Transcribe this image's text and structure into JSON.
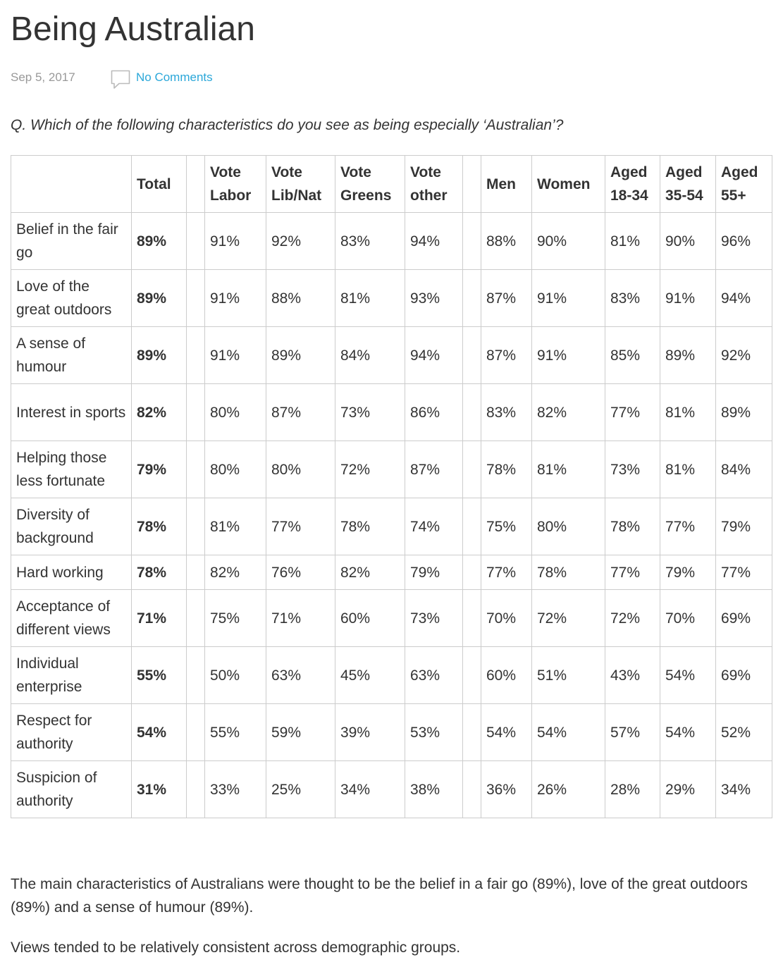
{
  "article": {
    "title": "Being Australian",
    "date": "Sep 5, 2017",
    "comments_label": "No Comments",
    "question": "Q. Which of the following characteristics do you see as being especially ‘Australian’?"
  },
  "table": {
    "headers": {
      "corner": "",
      "total": "Total",
      "spacer1": "",
      "vote_labor": "Vote Labor",
      "vote_libnat": "Vote Lib/Nat",
      "vote_greens": "Vote Greens",
      "vote_other": "Vote other",
      "spacer2": "",
      "men": "Men",
      "women": "Women",
      "aged_18_34": "Aged 18-34",
      "aged_35_54": "Aged 35-54",
      "aged_55plus": "Aged 55+"
    },
    "rows": [
      {
        "label": "Belief in the fair go",
        "total": "89%",
        "labor": "91%",
        "libnat": "92%",
        "greens": "83%",
        "other": "94%",
        "men": "88%",
        "women": "90%",
        "a1834": "81%",
        "a3554": "90%",
        "a55": "96%"
      },
      {
        "label": "Love of the great outdoors",
        "total": "89%",
        "labor": "91%",
        "libnat": "88%",
        "greens": "81%",
        "other": "93%",
        "men": "87%",
        "women": "91%",
        "a1834": "83%",
        "a3554": "91%",
        "a55": "94%"
      },
      {
        "label": "A sense of humour",
        "total": "89%",
        "labor": "91%",
        "libnat": "89%",
        "greens": "84%",
        "other": "94%",
        "men": "87%",
        "women": "91%",
        "a1834": "85%",
        "a3554": "89%",
        "a55": "92%"
      },
      {
        "label": "Interest in sports",
        "total": "82%",
        "labor": "80%",
        "libnat": "87%",
        "greens": "73%",
        "other": "86%",
        "men": "83%",
        "women": "82%",
        "a1834": "77%",
        "a3554": "81%",
        "a55": "89%"
      },
      {
        "label": "Helping those less fortunate",
        "total": "79%",
        "labor": "80%",
        "libnat": "80%",
        "greens": "72%",
        "other": "87%",
        "men": "78%",
        "women": "81%",
        "a1834": "73%",
        "a3554": "81%",
        "a55": "84%"
      },
      {
        "label": "Diversity of background",
        "total": "78%",
        "labor": "81%",
        "libnat": "77%",
        "greens": "78%",
        "other": "74%",
        "men": "75%",
        "women": "80%",
        "a1834": "78%",
        "a3554": "77%",
        "a55": "79%"
      },
      {
        "label": "Hard working",
        "total": "78%",
        "labor": "82%",
        "libnat": "76%",
        "greens": "82%",
        "other": "79%",
        "men": "77%",
        "women": "78%",
        "a1834": "77%",
        "a3554": "79%",
        "a55": "77%"
      },
      {
        "label": "Acceptance of different views",
        "total": "71%",
        "labor": "75%",
        "libnat": "71%",
        "greens": "60%",
        "other": "73%",
        "men": "70%",
        "women": "72%",
        "a1834": "72%",
        "a3554": "70%",
        "a55": "69%"
      },
      {
        "label": "Individual enterprise",
        "total": "55%",
        "labor": "50%",
        "libnat": "63%",
        "greens": "45%",
        "other": "63%",
        "men": "60%",
        "women": "51%",
        "a1834": "43%",
        "a3554": "54%",
        "a55": "69%"
      },
      {
        "label": "Respect for authority",
        "total": "54%",
        "labor": "55%",
        "libnat": "59%",
        "greens": "39%",
        "other": "53%",
        "men": "54%",
        "women": "54%",
        "a1834": "57%",
        "a3554": "54%",
        "a55": "52%"
      },
      {
        "label": "Suspicion of authority",
        "total": "31%",
        "labor": "33%",
        "libnat": "25%",
        "greens": "34%",
        "other": "38%",
        "men": "36%",
        "women": "26%",
        "a1834": "28%",
        "a3554": "29%",
        "a55": "34%"
      }
    ]
  },
  "body": {
    "paragraph1": "The main characteristics of Australians were thought to be the belief in a fair go (89%), love of the great outdoors (89%) and a sense of humour (89%).",
    "paragraph2": "Views tended to be relatively consistent across demographic groups."
  },
  "icons": {
    "comment": "speech-bubble-icon"
  },
  "colors": {
    "link": "#2aa7d9",
    "text": "#333333",
    "muted": "#999999",
    "border": "#cccccc"
  }
}
